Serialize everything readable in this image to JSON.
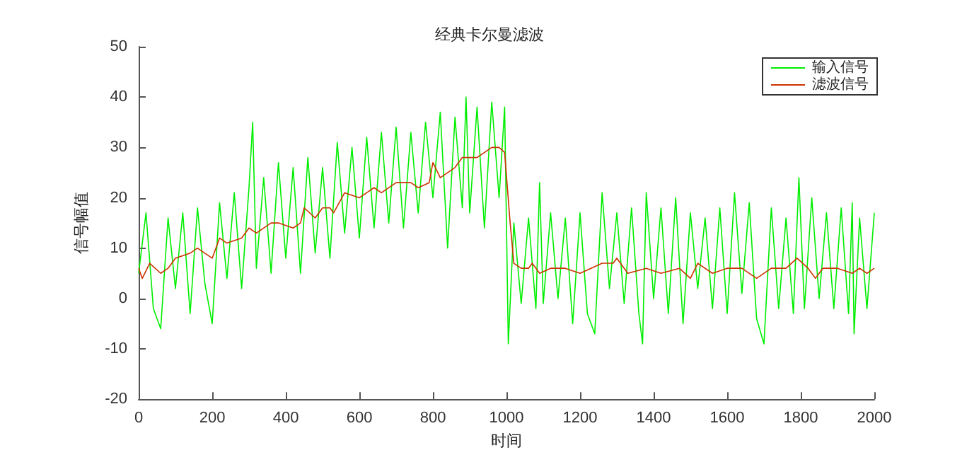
{
  "chart_data": {
    "type": "line",
    "title": "经典卡尔曼滤波",
    "xlabel": "时间",
    "ylabel": "信号幅值",
    "xlim": [
      0,
      2000
    ],
    "xticks": [
      0,
      200,
      400,
      600,
      800,
      1000,
      1200,
      1400,
      1600,
      1800,
      2000
    ],
    "ylim": [
      -20,
      50
    ],
    "yticks": [
      -20,
      -10,
      0,
      10,
      20,
      30,
      40,
      50
    ],
    "grid": false,
    "legend": "top right",
    "marker": "none",
    "line_style": "solid",
    "series": [
      {
        "name": "输入信号",
        "color": "#00ee00",
        "x": [
          0,
          20,
          40,
          60,
          80,
          100,
          120,
          140,
          160,
          180,
          200,
          220,
          240,
          260,
          280,
          300,
          310,
          320,
          340,
          360,
          380,
          400,
          420,
          440,
          460,
          480,
          500,
          520,
          540,
          560,
          580,
          600,
          620,
          640,
          660,
          680,
          700,
          720,
          740,
          760,
          780,
          800,
          820,
          840,
          860,
          880,
          890,
          900,
          920,
          940,
          960,
          980,
          995,
          1005,
          1020,
          1040,
          1060,
          1080,
          1090,
          1100,
          1120,
          1140,
          1160,
          1180,
          1200,
          1220,
          1240,
          1260,
          1280,
          1300,
          1320,
          1340,
          1360,
          1370,
          1380,
          1400,
          1420,
          1440,
          1460,
          1480,
          1500,
          1520,
          1540,
          1560,
          1580,
          1600,
          1620,
          1640,
          1660,
          1680,
          1700,
          1720,
          1740,
          1760,
          1780,
          1795,
          1810,
          1830,
          1850,
          1870,
          1890,
          1910,
          1930,
          1940,
          1945,
          1960,
          1980,
          2000
        ],
        "values": [
          5,
          17,
          -2,
          -6,
          16,
          2,
          17,
          -3,
          18,
          3,
          -5,
          19,
          4,
          21,
          2,
          22,
          35,
          6,
          24,
          5,
          27,
          8,
          26,
          5,
          28,
          9,
          26,
          8,
          31,
          13,
          30,
          12,
          32,
          14,
          33,
          15,
          34,
          14,
          33,
          17,
          35,
          20,
          37,
          10,
          36,
          18,
          40,
          17,
          38,
          14,
          39,
          20,
          38,
          -9,
          15,
          -1,
          16,
          -2,
          23,
          -1,
          17,
          0,
          16,
          -5,
          17,
          -3,
          -7,
          21,
          2,
          17,
          -1,
          18,
          -3,
          -9,
          21,
          0,
          18,
          -3,
          20,
          -5,
          17,
          2,
          16,
          -2,
          18,
          -3,
          21,
          1,
          19,
          -4,
          -9,
          18,
          -2,
          16,
          -3,
          24,
          -2,
          20,
          0,
          17,
          -2,
          18,
          -3,
          19,
          -7,
          16,
          -2,
          17
        ]
      },
      {
        "name": "滤波信号",
        "color": "#cc3300",
        "x": [
          0,
          10,
          30,
          60,
          80,
          100,
          140,
          160,
          180,
          200,
          220,
          240,
          280,
          300,
          320,
          360,
          380,
          420,
          440,
          450,
          480,
          500,
          520,
          530,
          560,
          600,
          620,
          640,
          660,
          700,
          740,
          760,
          790,
          800,
          820,
          860,
          880,
          920,
          960,
          980,
          995,
          1010,
          1020,
          1040,
          1060,
          1070,
          1090,
          1120,
          1160,
          1200,
          1230,
          1260,
          1290,
          1300,
          1330,
          1380,
          1420,
          1470,
          1500,
          1520,
          1560,
          1600,
          1640,
          1680,
          1720,
          1760,
          1790,
          1820,
          1840,
          1860,
          1900,
          1940,
          1960,
          1980,
          2000
        ],
        "values": [
          6,
          4,
          7,
          5,
          6,
          8,
          9,
          10,
          9,
          8,
          12,
          11,
          12,
          14,
          13,
          15,
          15,
          14,
          15,
          18,
          16,
          18,
          18,
          17,
          21,
          20,
          21,
          22,
          21,
          23,
          23,
          22,
          23,
          27,
          24,
          26,
          28,
          28,
          30,
          30,
          29,
          15,
          7,
          6,
          6,
          7,
          5,
          6,
          6,
          5,
          6,
          7,
          7,
          8,
          5,
          6,
          5,
          6,
          4,
          7,
          5,
          6,
          6,
          4,
          6,
          6,
          8,
          6,
          4,
          6,
          6,
          5,
          6,
          5,
          6
        ]
      }
    ]
  }
}
